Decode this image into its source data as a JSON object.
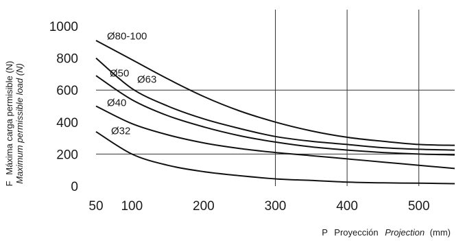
{
  "chart_data": {
    "type": "line",
    "title": "",
    "xlabel": {
      "prefix": "P",
      "es": "Proyección",
      "en": "Projection",
      "unit": "(mm)"
    },
    "ylabel": {
      "prefix": "F",
      "es": "Máxima carga permisible (N)",
      "en": "Maximum permissible load (N)"
    },
    "xlim": [
      50,
      550
    ],
    "ylim": [
      0,
      1000
    ],
    "x_ticks": [
      50,
      100,
      200,
      300,
      400,
      500
    ],
    "y_ticks": [
      0,
      200,
      400,
      600,
      800,
      1000
    ],
    "x_gridlines": [
      300,
      400,
      500
    ],
    "y_gridlines": [
      200,
      600
    ],
    "grid": "partial",
    "series": [
      {
        "name": "Ø80-100",
        "x": [
          50,
          100,
          150,
          200,
          250,
          300,
          350,
          400,
          450,
          500,
          550
        ],
        "y": [
          910,
          790,
          670,
          560,
          470,
          400,
          345,
          305,
          280,
          260,
          255
        ]
      },
      {
        "name": "Ø63",
        "x": [
          50,
          100,
          150,
          200,
          250,
          300,
          350,
          400,
          450,
          500,
          550
        ],
        "y": [
          800,
          610,
          500,
          420,
          360,
          310,
          280,
          260,
          240,
          230,
          225
        ]
      },
      {
        "name": "Ø50",
        "x": [
          50,
          100,
          150,
          200,
          250,
          300,
          350,
          400,
          450,
          500,
          550
        ],
        "y": [
          690,
          540,
          440,
          370,
          315,
          275,
          245,
          225,
          210,
          200,
          195
        ]
      },
      {
        "name": "Ø40",
        "x": [
          50,
          100,
          150,
          200,
          250,
          300,
          350,
          400,
          450,
          500,
          550
        ],
        "y": [
          500,
          390,
          320,
          270,
          235,
          210,
          190,
          170,
          150,
          130,
          110
        ]
      },
      {
        "name": "Ø32",
        "x": [
          50,
          100,
          150,
          200,
          250,
          300,
          350,
          400,
          450,
          500,
          550
        ],
        "y": [
          340,
          200,
          130,
          90,
          65,
          45,
          35,
          25,
          20,
          18,
          15
        ]
      }
    ]
  }
}
